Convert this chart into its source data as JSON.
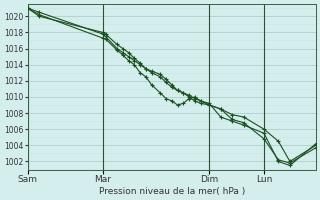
{
  "xlabel": "Pression niveau de la mer( hPa )",
  "background_color": "#d4eeed",
  "grid_color_minor": "#c8e4e0",
  "grid_color_major": "#a8c8c4",
  "line_color": "#1a5020",
  "ylim": [
    1001,
    1021.5
  ],
  "yticks": [
    1002,
    1004,
    1006,
    1008,
    1010,
    1012,
    1014,
    1016,
    1018,
    1020
  ],
  "xtick_labels": [
    "Sam",
    "Mar",
    "Dim",
    "Lun"
  ],
  "xtick_positions": [
    0.0,
    0.26,
    0.63,
    0.82
  ],
  "xlim": [
    0.0,
    1.0
  ],
  "vline_positions": [
    0.0,
    0.26,
    0.63,
    0.82
  ],
  "series1_x": [
    0.0,
    0.04,
    0.26,
    0.27,
    0.31,
    0.33,
    0.35,
    0.37,
    0.39,
    0.41,
    0.43,
    0.46,
    0.48,
    0.5,
    0.52,
    0.54,
    0.56,
    0.58,
    0.6,
    0.63,
    0.67,
    0.71,
    0.75,
    0.82,
    0.87,
    0.91,
    1.0
  ],
  "series1_y": [
    1021.0,
    1020.5,
    1017.8,
    1017.5,
    1016.0,
    1015.5,
    1015.0,
    1014.5,
    1014.0,
    1013.5,
    1013.2,
    1012.8,
    1012.2,
    1011.5,
    1010.8,
    1010.5,
    1010.2,
    1009.8,
    1009.5,
    1009.0,
    1008.5,
    1007.2,
    1006.8,
    1004.8,
    1002.2,
    1001.8,
    1003.7
  ],
  "series2_x": [
    0.0,
    0.04,
    0.26,
    0.27,
    0.31,
    0.33,
    0.35,
    0.37,
    0.39,
    0.41,
    0.43,
    0.46,
    0.48,
    0.5,
    0.52,
    0.54,
    0.56,
    0.58,
    0.6,
    0.63,
    0.67,
    0.71,
    0.75,
    0.82,
    0.87,
    0.91,
    1.0
  ],
  "series2_y": [
    1021.0,
    1020.0,
    1018.0,
    1017.8,
    1016.5,
    1016.0,
    1015.5,
    1014.8,
    1014.2,
    1013.5,
    1013.0,
    1012.5,
    1011.8,
    1011.2,
    1010.8,
    1010.5,
    1010.0,
    1009.5,
    1009.2,
    1009.0,
    1008.5,
    1007.8,
    1007.5,
    1006.0,
    1004.5,
    1002.0,
    1004.0
  ],
  "series3_x": [
    0.0,
    0.04,
    0.26,
    0.27,
    0.31,
    0.33,
    0.35,
    0.37,
    0.39,
    0.41,
    0.43,
    0.46,
    0.48,
    0.5,
    0.52,
    0.54,
    0.56,
    0.58,
    0.6,
    0.63,
    0.67,
    0.71,
    0.75,
    0.82,
    0.87,
    0.91,
    1.0
  ],
  "series3_y": [
    1021.0,
    1020.2,
    1017.3,
    1017.2,
    1015.8,
    1015.2,
    1014.5,
    1014.0,
    1013.0,
    1012.5,
    1011.5,
    1010.5,
    1009.8,
    1009.5,
    1009.0,
    1009.2,
    1009.8,
    1010.0,
    1009.5,
    1009.2,
    1007.5,
    1007.0,
    1006.5,
    1005.5,
    1002.0,
    1001.5,
    1004.2
  ]
}
